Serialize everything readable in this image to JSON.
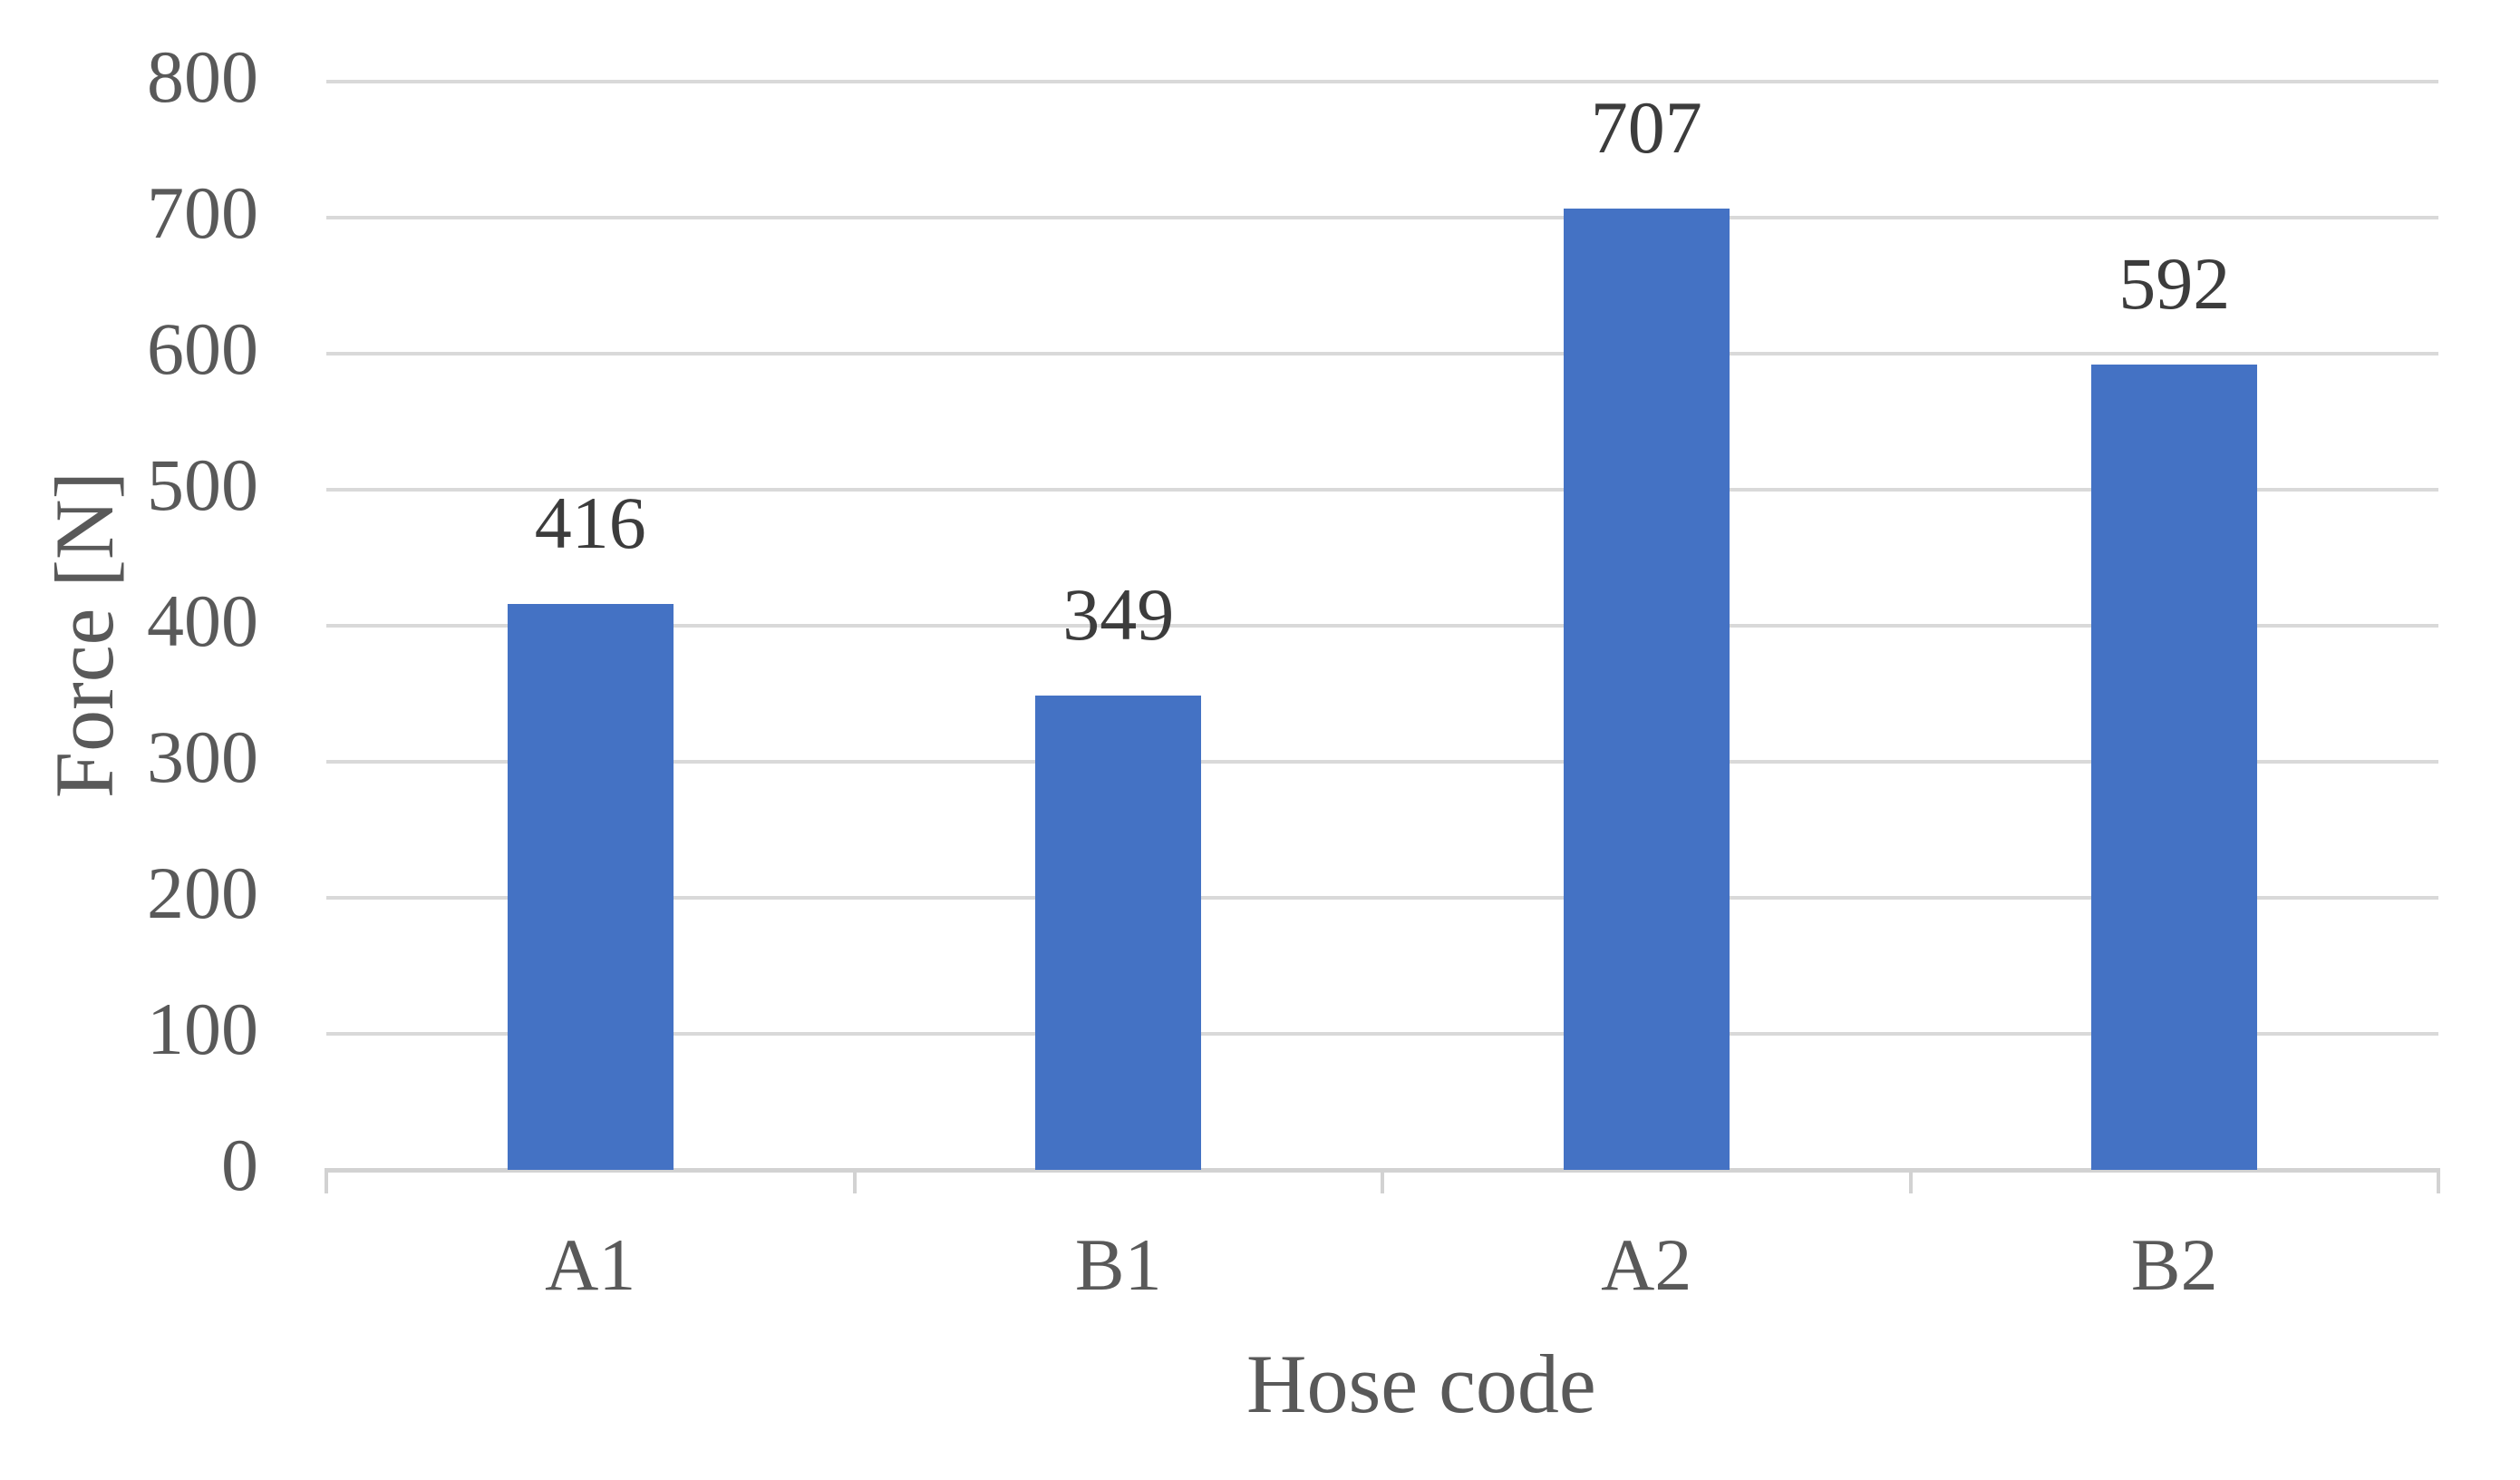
{
  "chart_data": {
    "type": "bar",
    "categories": [
      "A1",
      "B1",
      "A2",
      "B2"
    ],
    "values": [
      416,
      349,
      707,
      592
    ],
    "data_labels": [
      "416",
      "349",
      "707",
      "592"
    ],
    "title": "",
    "xlabel": "Hose code",
    "ylabel": "Force [N]",
    "ylim": [
      0,
      800
    ],
    "yticks": [
      0,
      100,
      200,
      300,
      400,
      500,
      600,
      700,
      800
    ],
    "grid": "horizontal-only",
    "legend": "none",
    "colors": {
      "bar": "#4472C4",
      "gridline": "#D9D9D9",
      "axis_line": "#D2D2D2",
      "tick_label": "#595959",
      "axis_title": "#595959",
      "data_label": "#3C3C3C",
      "background": "#FFFFFF"
    }
  }
}
